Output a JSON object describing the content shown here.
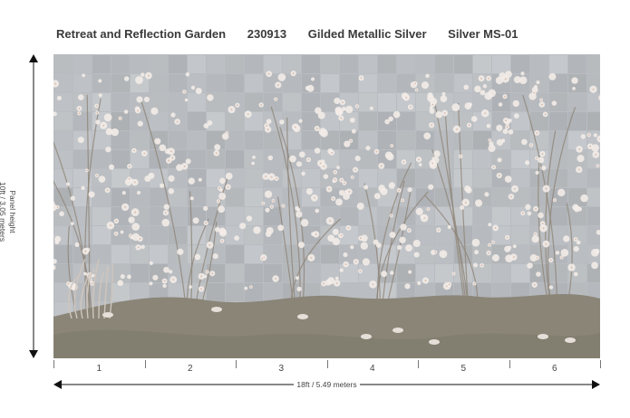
{
  "header": {
    "collection": "Retreat and Reflection Garden",
    "code": "230913",
    "finish": "Gilded Metallic Silver",
    "colorway": "Silver MS-01"
  },
  "dimensions": {
    "height_label": "Panel height",
    "height_value": "10ft / 3.05 meters",
    "width_value": "18ft / 5.49 meters"
  },
  "panels": [
    "1",
    "2",
    "3",
    "4",
    "5",
    "6"
  ],
  "colors": {
    "background_silver": "#b9bcc0",
    "ground": "#8a8577",
    "blossom": "#f3ece8"
  }
}
